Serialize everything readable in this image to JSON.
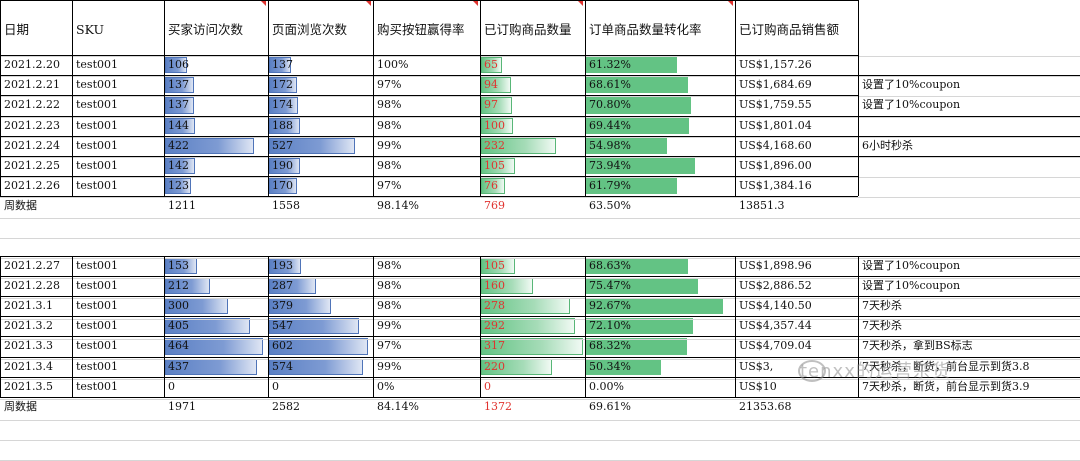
{
  "headers": [
    "日期",
    "SKU",
    "买家访问次数",
    "页面浏览次数",
    "购买按钮赢得率",
    "已订购商品数量",
    "订单商品数量转化率",
    "已订购商品销售额"
  ],
  "week1": {
    "rows": [
      {
        "date": "2021.2.20",
        "sku": "test001",
        "visits": "106",
        "views": "137",
        "buybox": "100%",
        "units": "65",
        "conv": "61.32%",
        "sales": "US$1,157.26",
        "note": "",
        "v": 106,
        "pv": 137,
        "u": 65,
        "c": 61.32
      },
      {
        "date": "2021.2.21",
        "sku": "test001",
        "visits": "137",
        "views": "172",
        "buybox": "97%",
        "units": "94",
        "conv": "68.61%",
        "sales": "US$1,684.69",
        "note": "设置了10%coupon",
        "v": 137,
        "pv": 172,
        "u": 94,
        "c": 68.61
      },
      {
        "date": "2021.2.22",
        "sku": "test001",
        "visits": "137",
        "views": "174",
        "buybox": "98%",
        "units": "97",
        "conv": "70.80%",
        "sales": "US$1,759.55",
        "note": "设置了10%coupon",
        "v": 137,
        "pv": 174,
        "u": 97,
        "c": 70.8
      },
      {
        "date": "2021.2.23",
        "sku": "test001",
        "visits": "144",
        "views": "188",
        "buybox": "98%",
        "units": "100",
        "conv": "69.44%",
        "sales": "US$1,801.04",
        "note": "",
        "v": 144,
        "pv": 188,
        "u": 100,
        "c": 69.44
      },
      {
        "date": "2021.2.24",
        "sku": "test001",
        "visits": "422",
        "views": "527",
        "buybox": "99%",
        "units": "232",
        "conv": "54.98%",
        "sales": "US$4,168.60",
        "note": "6小时秒杀",
        "v": 422,
        "pv": 527,
        "u": 232,
        "c": 54.98
      },
      {
        "date": "2021.2.25",
        "sku": "test001",
        "visits": "142",
        "views": "190",
        "buybox": "98%",
        "units": "105",
        "conv": "73.94%",
        "sales": "US$1,896.00",
        "note": "",
        "v": 142,
        "pv": 190,
        "u": 105,
        "c": 73.94
      },
      {
        "date": "2021.2.26",
        "sku": "test001",
        "visits": "123",
        "views": "170",
        "buybox": "97%",
        "units": "76",
        "conv": "61.79%",
        "sales": "US$1,384.16",
        "note": "",
        "v": 123,
        "pv": 170,
        "u": 76,
        "c": 61.79
      }
    ],
    "summary": {
      "label": "周数据",
      "visits": "1211",
      "views": "1558",
      "buybox": "98.14%",
      "units": "769",
      "conv": "63.50%",
      "sales": "13851.3"
    }
  },
  "week2": {
    "rows": [
      {
        "date": "2021.2.27",
        "sku": "test001",
        "visits": "153",
        "views": "193",
        "buybox": "98%",
        "units": "105",
        "conv": "68.63%",
        "sales": "US$1,898.96",
        "note": "设置了10%coupon",
        "v": 153,
        "pv": 193,
        "u": 105,
        "c": 68.63
      },
      {
        "date": "2021.2.28",
        "sku": "test001",
        "visits": "212",
        "views": "287",
        "buybox": "98%",
        "units": "160",
        "conv": "75.47%",
        "sales": "US$2,886.52",
        "note": "设置了10%coupon",
        "v": 212,
        "pv": 287,
        "u": 160,
        "c": 75.47
      },
      {
        "date": "2021.3.1",
        "sku": "test001",
        "visits": "300",
        "views": "379",
        "buybox": "98%",
        "units": "278",
        "conv": "92.67%",
        "sales": "US$4,140.50",
        "note": "7天秒杀",
        "v": 300,
        "pv": 379,
        "u": 278,
        "c": 92.67
      },
      {
        "date": "2021.3.2",
        "sku": "test001",
        "visits": "405",
        "views": "547",
        "buybox": "99%",
        "units": "292",
        "conv": "72.10%",
        "sales": "US$4,357.44",
        "note": "7天秒杀",
        "v": 405,
        "pv": 547,
        "u": 292,
        "c": 72.1
      },
      {
        "date": "2021.3.3",
        "sku": "test001",
        "visits": "464",
        "views": "602",
        "buybox": "97%",
        "units": "317",
        "conv": "68.32%",
        "sales": "US$4,709.04",
        "note": "7天秒杀，拿到BS标志",
        "v": 464,
        "pv": 602,
        "u": 317,
        "c": 68.32
      },
      {
        "date": "2021.3.4",
        "sku": "test001",
        "visits": "437",
        "views": "574",
        "buybox": "99%",
        "units": "220",
        "conv": "50.34%",
        "sales": "US$3,",
        "note": "7天秒杀，断货，前台显示到货3.8",
        "v": 437,
        "pv": 574,
        "u": 220,
        "c": 50.34
      },
      {
        "date": "2021.3.5",
        "sku": "test001",
        "visits": "0",
        "views": "0",
        "buybox": "0%",
        "units": "0",
        "conv": "0.00%",
        "sales": "US$10",
        "note": "7天秒杀，断货，前台显示到货3.9",
        "v": 0,
        "pv": 0,
        "u": 0,
        "c": 0
      }
    ],
    "summary": {
      "label": "周数据",
      "visits": "1971",
      "views": "2582",
      "buybox": "84.14%",
      "units": "1372",
      "conv": "69.61%",
      "sales": "21353.68"
    }
  },
  "watermark": "tenxx的运营杂货",
  "colors": {
    "bar_blue": "#5b80c4",
    "bar_green": "#63c384",
    "red_text": "#e0332f"
  }
}
